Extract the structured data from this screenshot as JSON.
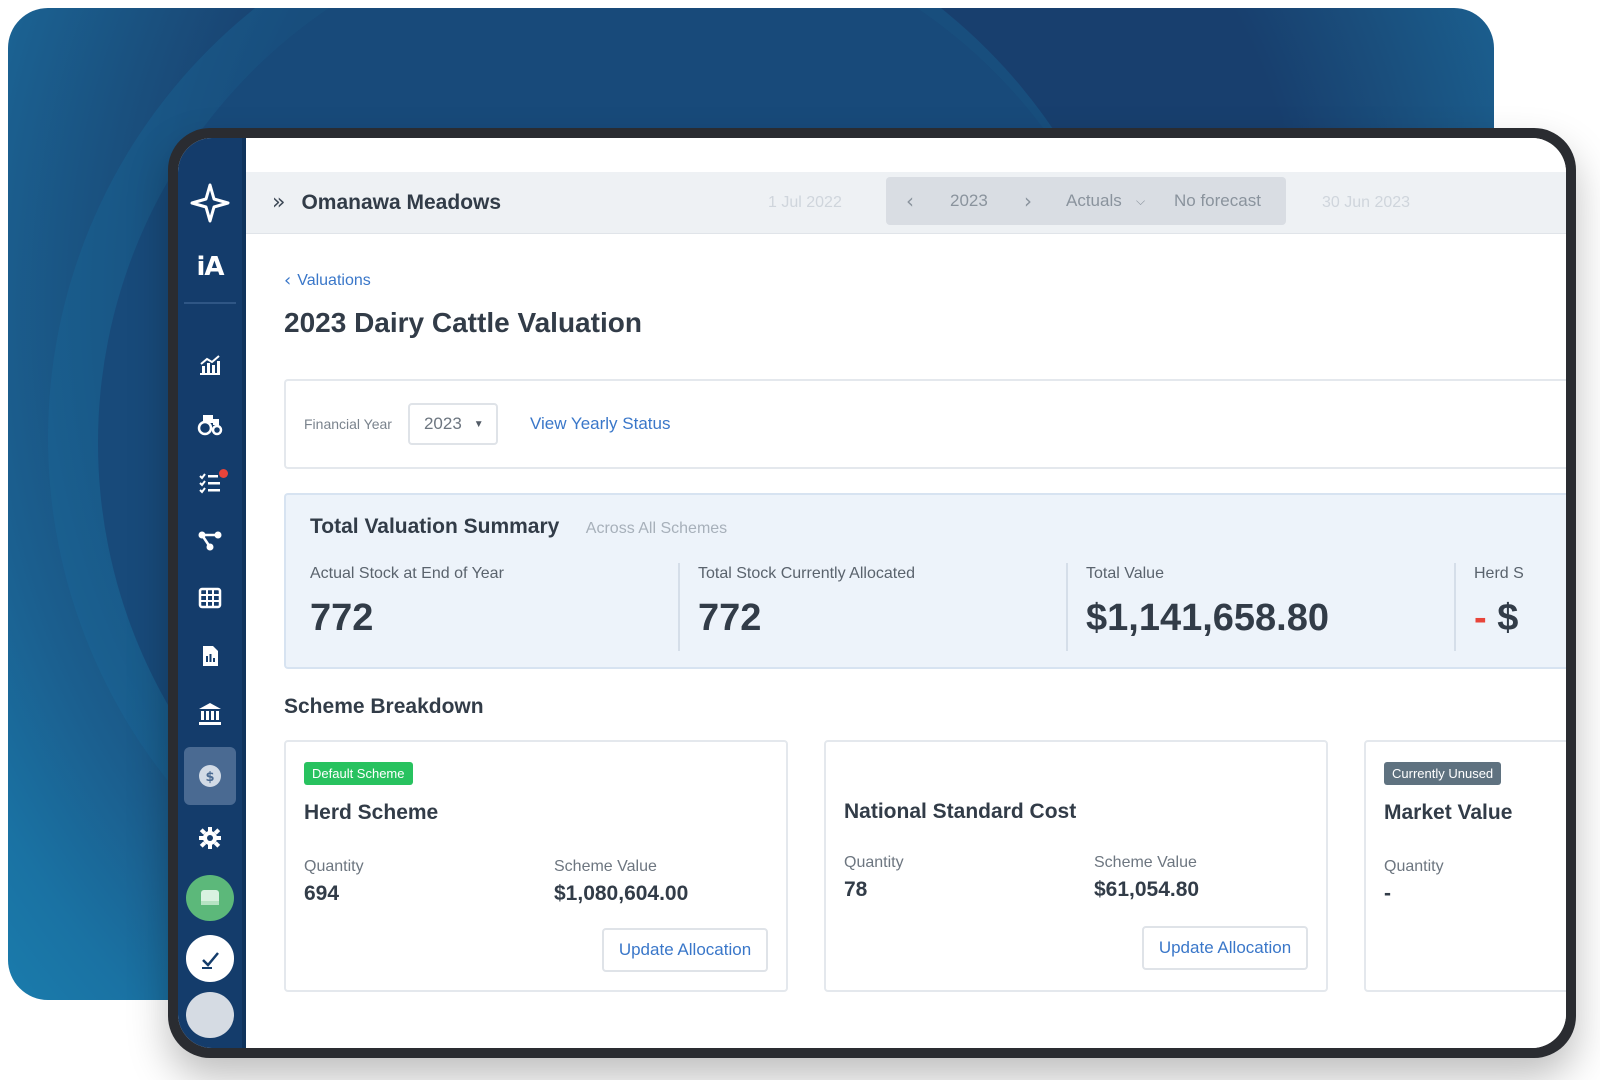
{
  "sidebar": {
    "ia_label": "iA",
    "items": [
      {
        "icon": "chart-icon"
      },
      {
        "icon": "farm-machinery-icon"
      },
      {
        "icon": "task-list-icon",
        "badge": true
      },
      {
        "icon": "flow-icon"
      },
      {
        "icon": "grid-table-icon"
      },
      {
        "icon": "document-icon"
      },
      {
        "icon": "bank-icon"
      },
      {
        "icon": "dollar-icon",
        "active": true
      },
      {
        "icon": "gear-icon"
      }
    ]
  },
  "topbar": {
    "farm_name": "Omanawa Meadows",
    "start_date": "1 Jul 2022",
    "year": "2023",
    "mode": "Actuals",
    "forecast": "No forecast",
    "end_date": "30 Jun 2023"
  },
  "breadcrumb": {
    "back_label": "Valuations"
  },
  "page_title": "2023 Dairy Cattle Valuation",
  "filters": {
    "financial_year_label": "Financial Year",
    "financial_year_value": "2023",
    "yearly_status_link": "View Yearly Status"
  },
  "summary": {
    "title": "Total Valuation Summary",
    "subtitle": "Across All Schemes",
    "metrics": [
      {
        "label": "Actual Stock at End of Year",
        "value": "772"
      },
      {
        "label": "Total Stock Currently Allocated",
        "value": "772"
      },
      {
        "label": "Total Value",
        "value": "$1,141,658.80"
      },
      {
        "label": "Herd S",
        "value": "$",
        "prefix": "-"
      }
    ]
  },
  "scheme_breakdown": {
    "title": "Scheme Breakdown",
    "schemes": [
      {
        "badge": "Default Scheme",
        "name": "Herd Scheme",
        "quantity_label": "Quantity",
        "quantity": "694",
        "value_label": "Scheme Value",
        "value": "$1,080,604.00",
        "button": "Update Allocation"
      },
      {
        "badge": "",
        "name": "National Standard Cost",
        "quantity_label": "Quantity",
        "quantity": "78",
        "value_label": "Scheme Value",
        "value": "$61,054.80",
        "button": "Update Allocation"
      },
      {
        "badge": "Currently Unused",
        "name": "Market Value",
        "quantity_label": "Quantity",
        "quantity": "-"
      }
    ]
  },
  "colors": {
    "sidebar": "#143c6b",
    "accent_link": "#3a77c9",
    "default_badge": "#28c25f",
    "unused_badge": "#5f7280",
    "negative": "#e8443a"
  }
}
